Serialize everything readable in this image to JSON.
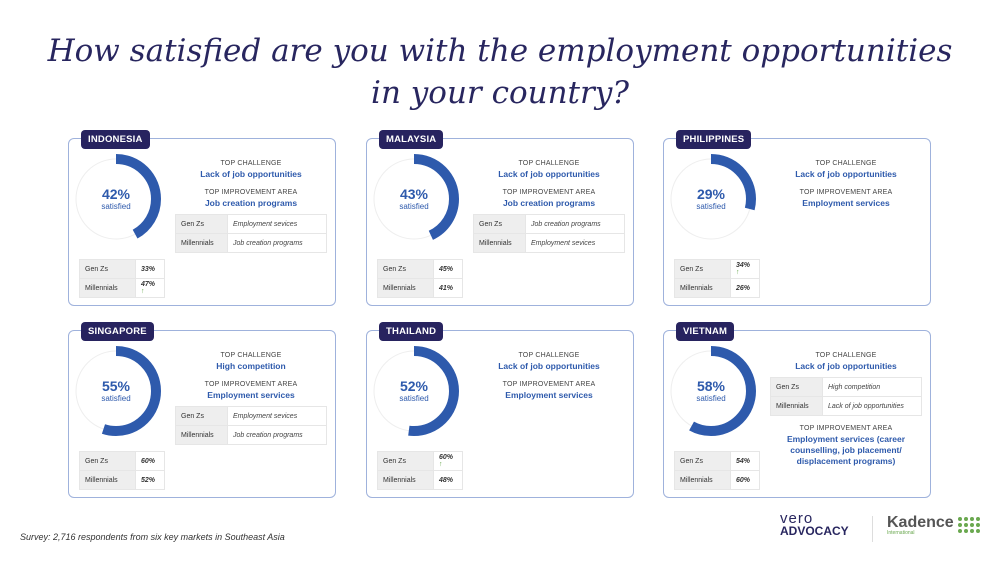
{
  "title_line1": "How satisfied are you with the employment opportunities",
  "title_line2": "in your country?",
  "labels": {
    "top_challenge": "TOP CHALLENGE",
    "top_improvement": "TOP IMPROVEMENT AREA",
    "satisfied": "satisfied",
    "gen_z": "Gen Zs",
    "millennials": "Millennials"
  },
  "colors": {
    "accent": "#2e5aac",
    "navy": "#27235f",
    "up_arrow": "#6aa84f"
  },
  "chart_data": {
    "type": "donut",
    "cards": [
      {
        "country": "INDONESIA",
        "satisfied_pct": 42,
        "satisfied_label": "42%",
        "gen_z": "33%",
        "millennials": "47%",
        "arrow": "millennials",
        "challenge": "Lack of job opportunities",
        "improvement": "Job creation programs",
        "improvement_table": {
          "gen_z": "Employment sevices",
          "millennials": "Job creation programs"
        }
      },
      {
        "country": "MALAYSIA",
        "satisfied_pct": 43,
        "satisfied_label": "43%",
        "gen_z": "45%",
        "millennials": "41%",
        "arrow": "",
        "challenge": "Lack of job opportunities",
        "improvement": "Job creation programs",
        "improvement_table": {
          "gen_z": "Job creation programs",
          "millennials": "Employment sevices"
        }
      },
      {
        "country": "PHILIPPINES",
        "satisfied_pct": 29,
        "satisfied_label": "29%",
        "gen_z": "34%",
        "millennials": "26%",
        "arrow": "gen_z",
        "challenge": "Lack of job opportunities",
        "improvement": "Employment services"
      },
      {
        "country": "SINGAPORE",
        "satisfied_pct": 55,
        "satisfied_label": "55%",
        "gen_z": "60%",
        "millennials": "52%",
        "arrow": "",
        "challenge": "High competition",
        "improvement": "Employment services",
        "improvement_table": {
          "gen_z": "Employment sevices",
          "millennials": "Job creation programs"
        }
      },
      {
        "country": "THAILAND",
        "satisfied_pct": 52,
        "satisfied_label": "52%",
        "gen_z": "60%",
        "millennials": "48%",
        "arrow": "gen_z",
        "challenge": "Lack of job opportunities",
        "improvement": "Employment services"
      },
      {
        "country": "VIETNAM",
        "satisfied_pct": 58,
        "satisfied_label": "58%",
        "gen_z": "54%",
        "millennials": "60%",
        "arrow": "",
        "challenge": "Lack of job opportunities",
        "challenge_table": {
          "gen_z": "High competition",
          "millennials": "Lack of job opportunities"
        },
        "improvement": "Employment services (career counselling, job placement/ displacement programs)"
      }
    ]
  },
  "footnote": "Survey: 2,716 respondents from six key markets in Southeast Asia",
  "logos": {
    "vero_top": "vero",
    "vero_bottom": "ADVOCACY",
    "kadence": "Kadence",
    "kadence_sub": "International"
  }
}
